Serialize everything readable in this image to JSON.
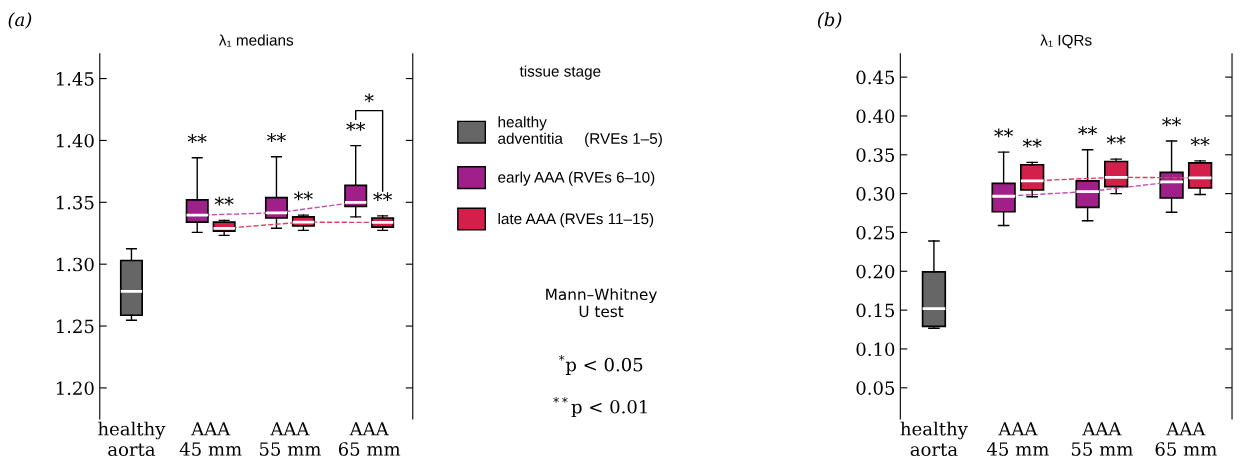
{
  "chart_data": [
    {
      "type": "box",
      "title": "λ₁ medians",
      "categories": [
        "healthy\naorta",
        "AAA\n45 mm",
        "AAA\n55 mm",
        "AAA\n65 mm"
      ],
      "ylim": [
        1.175,
        1.47
      ],
      "yticks": [
        {
          "value": 1.2,
          "label": "1.20"
        },
        {
          "value": 1.25,
          "label": "1.25"
        },
        {
          "value": 1.3,
          "label": "1.30"
        },
        {
          "value": 1.35,
          "label": "1.35"
        },
        {
          "value": 1.4,
          "label": "1.40"
        },
        {
          "value": 1.45,
          "label": "1.45"
        }
      ],
      "grid": false,
      "legend": "right",
      "legend_title": "tissue stage",
      "series": [
        {
          "name": "healthy\nadventitia     (RVEs 1–5)",
          "color": "#666666",
          "boxes": [
            {
              "low": 1.2547,
              "q1": 1.2587,
              "median": 1.278,
              "q3": 1.303,
              "high": 1.3125
            },
            null,
            null,
            null
          ]
        },
        {
          "name": "early AAA (RVEs 6–10)",
          "color": "#a0208a",
          "boxes": [
            null,
            {
              "low": 1.3257,
              "q1": 1.334,
              "median": 1.3396,
              "q3": 1.352,
              "high": 1.386
            },
            {
              "low": 1.329,
              "q1": 1.3373,
              "median": 1.3415,
              "q3": 1.3538,
              "high": 1.3868
            },
            {
              "low": 1.3382,
              "q1": 1.3467,
              "median": 1.35,
              "q3": 1.3637,
              "high": 1.3958
            }
          ]
        },
        {
          "name": "late AAA (RVEs 11–15)",
          "color": "#d2204a",
          "boxes": [
            null,
            {
              "low": 1.3233,
              "q1": 1.3267,
              "median": 1.329,
              "q3": 1.334,
              "high": 1.3354
            },
            {
              "low": 1.3273,
              "q1": 1.331,
              "median": 1.334,
              "q3": 1.3382,
              "high": 1.3396
            },
            {
              "low": 1.3273,
              "q1": 1.33,
              "median": 1.3337,
              "q3": 1.3373,
              "high": 1.339
            }
          ]
        },
        {
          "type": "line",
          "color": "#c050b0",
          "line_style": "dashed",
          "values": [
            null,
            1.3396,
            1.3415,
            1.35
          ]
        },
        {
          "type": "line",
          "color": "#e04060",
          "line_style": "dashed",
          "values": [
            null,
            1.329,
            1.334,
            1.3337
          ]
        }
      ],
      "annotations": [
        "(a)",
        "Mann–Whitney\nU test",
        "$^{*}$p < 0.05",
        "$^{**}$p < 0.01",
        "**",
        "**",
        "**",
        "**",
        "**",
        "**",
        "*"
      ]
    },
    {
      "type": "box",
      "title": "λ₁ IQRs",
      "categories": [
        "healthy\naorta",
        "AAA\n45 mm",
        "AAA\n55 mm",
        "AAA\n65 mm"
      ],
      "ylim": [
        0.01,
        0.48
      ],
      "yticks": [
        {
          "value": 0.05,
          "label": "0.05"
        },
        {
          "value": 0.1,
          "label": "0.10"
        },
        {
          "value": 0.15,
          "label": "0.15"
        },
        {
          "value": 0.2,
          "label": "0.20"
        },
        {
          "value": 0.25,
          "label": "0.25"
        },
        {
          "value": 0.3,
          "label": "0.30"
        },
        {
          "value": 0.35,
          "label": "0.35"
        },
        {
          "value": 0.4,
          "label": "0.40"
        },
        {
          "value": 0.45,
          "label": "0.45"
        }
      ],
      "grid": false,
      "series": [
        {
          "color": "#666666",
          "boxes": [
            {
              "low": 0.1267,
              "q1": 0.129,
              "median": 0.1519,
              "q3": 0.1993,
              "high": 0.239
            },
            null,
            null,
            null
          ]
        },
        {
          "color": "#a0208a",
          "boxes": [
            null,
            {
              "low": 0.259,
              "q1": 0.2767,
              "median": 0.2966,
              "q3": 0.3132,
              "high": 0.3534
            },
            {
              "low": 0.265,
              "q1": 0.2823,
              "median": 0.3026,
              "q3": 0.3165,
              "high": 0.3564
            },
            {
              "low": 0.276,
              "q1": 0.2944,
              "median": 0.315,
              "q3": 0.3274,
              "high": 0.3677
            }
          ]
        },
        {
          "color": "#d2204a",
          "boxes": [
            null,
            {
              "low": 0.2959,
              "q1": 0.3049,
              "median": 0.3165,
              "q3": 0.3372,
              "high": 0.3402
            },
            {
              "low": 0.3,
              "q1": 0.309,
              "median": 0.321,
              "q3": 0.3414,
              "high": 0.3444
            },
            {
              "low": 0.2989,
              "q1": 0.3075,
              "median": 0.3203,
              "q3": 0.3395,
              "high": 0.3421
            }
          ]
        },
        {
          "type": "line",
          "color": "#c050b0",
          "line_style": "dashed",
          "values": [
            null,
            0.2966,
            0.3026,
            0.315
          ]
        },
        {
          "type": "line",
          "color": "#e04060",
          "line_style": "dashed",
          "values": [
            null,
            0.3165,
            0.321,
            0.3203
          ]
        }
      ],
      "annotations": [
        "(b)",
        "**",
        "**",
        "**",
        "**",
        "**",
        "**"
      ]
    }
  ]
}
